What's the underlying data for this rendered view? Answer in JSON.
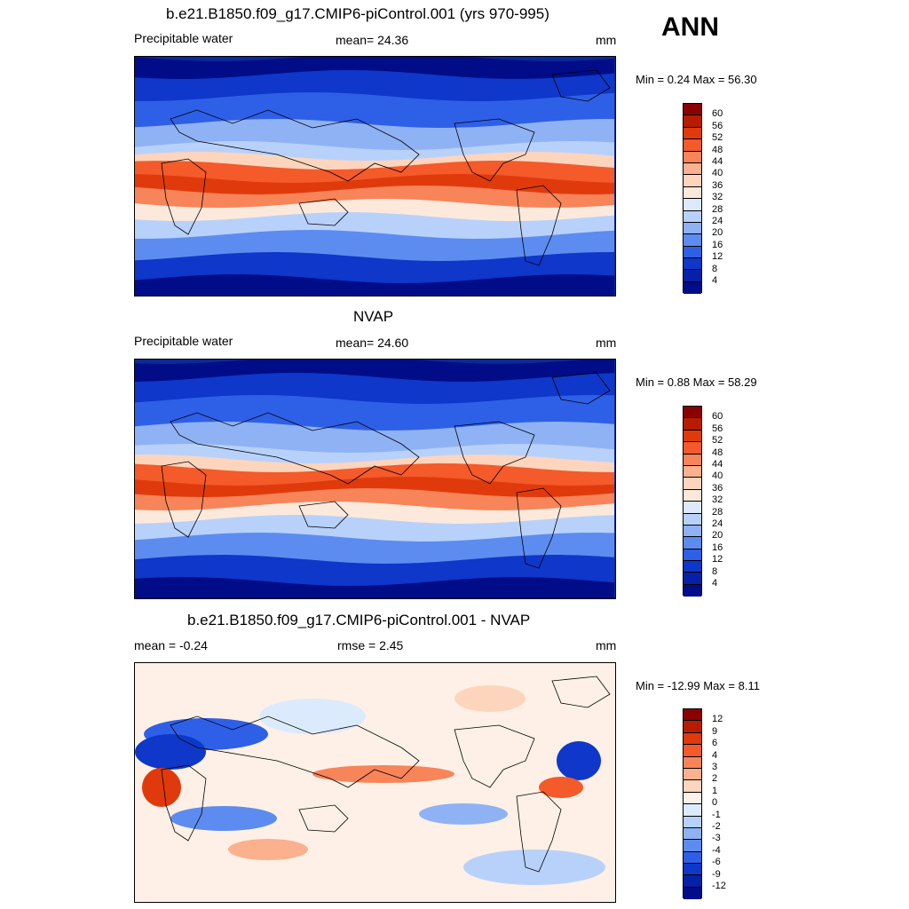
{
  "season": "ANN",
  "panels": [
    {
      "title": "b.e21.B1850.f09_g17.CMIP6-piControl.001 (yrs 970-995)",
      "left_label": "Precipitable water",
      "center_label": "mean=  24.36",
      "right_label": "mm",
      "minmax": "Min =   0.24 Max =  56.30",
      "colorbar_ticks": [
        "60",
        "56",
        "52",
        "48",
        "44",
        "40",
        "36",
        "32",
        "28",
        "24",
        "20",
        "16",
        "12",
        "8",
        "4"
      ],
      "colorbar_colors": [
        "#8b0000",
        "#b71c00",
        "#e03a0c",
        "#f45a2a",
        "#f8845a",
        "#fbb08e",
        "#fdd5bd",
        "#fde9dc",
        "#ddeafe",
        "#b8d1fb",
        "#8fb2f5",
        "#5d8cf0",
        "#2e5fe7",
        "#0f37c9",
        "#0620a8",
        "#000c88"
      ],
      "map_palette": "total"
    },
    {
      "title": "NVAP",
      "left_label": "Precipitable water",
      "center_label": "mean=  24.60",
      "right_label": "mm",
      "minmax": "Min =   0.88 Max =  58.29",
      "colorbar_ticks": [
        "60",
        "56",
        "52",
        "48",
        "44",
        "40",
        "36",
        "32",
        "28",
        "24",
        "20",
        "16",
        "12",
        "8",
        "4"
      ],
      "colorbar_colors": [
        "#8b0000",
        "#b71c00",
        "#e03a0c",
        "#f45a2a",
        "#f8845a",
        "#fbb08e",
        "#fdd5bd",
        "#fde9dc",
        "#ddeafe",
        "#b8d1fb",
        "#8fb2f5",
        "#5d8cf0",
        "#2e5fe7",
        "#0f37c9",
        "#0620a8",
        "#000c88"
      ],
      "map_palette": "total"
    },
    {
      "title": "b.e21.B1850.f09_g17.CMIP6-piControl.001 - NVAP",
      "left_label": "mean =  -0.24",
      "center_label": "rmse =   2.45",
      "right_label": "mm",
      "minmax": "Min = -12.99 Max =   8.11",
      "colorbar_ticks": [
        "12",
        "9",
        "6",
        "4",
        "3",
        "2",
        "1",
        "0",
        "-1",
        "-2",
        "-3",
        "-4",
        "-6",
        "-9",
        "-12"
      ],
      "colorbar_colors": [
        "#8b0000",
        "#b71c00",
        "#e03a0c",
        "#f45a2a",
        "#f8845a",
        "#fbb08e",
        "#fdd5bd",
        "#fef0e6",
        "#dceafd",
        "#b8d1fb",
        "#8fb2f5",
        "#5d8cf0",
        "#2e5fe7",
        "#0f37c9",
        "#0620a8",
        "#000c88"
      ],
      "map_palette": "diff"
    }
  ]
}
